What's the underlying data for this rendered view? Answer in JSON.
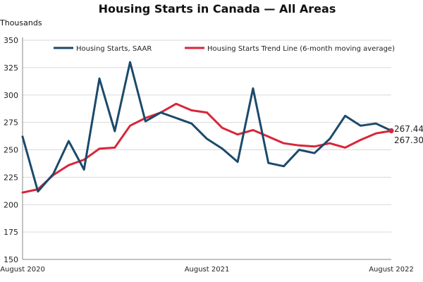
{
  "chart_data": {
    "type": "line",
    "title": "Housing Starts in Canada — All Areas",
    "ylabel": "Thousands",
    "xlabel": "",
    "ylim": [
      150,
      350
    ],
    "yticks": [
      150,
      175,
      200,
      225,
      250,
      275,
      300,
      325,
      350
    ],
    "x_tick_labels": [
      "August 2020",
      "August 2021",
      "August 2022"
    ],
    "x_tick_indices": [
      0,
      12,
      24
    ],
    "x": [
      "2020-08",
      "2020-09",
      "2020-10",
      "2020-11",
      "2020-12",
      "2021-01",
      "2021-02",
      "2021-03",
      "2021-04",
      "2021-05",
      "2021-06",
      "2021-07",
      "2021-08",
      "2021-09",
      "2021-10",
      "2021-11",
      "2021-12",
      "2022-01",
      "2022-02",
      "2022-03",
      "2022-04",
      "2022-05",
      "2022-06",
      "2022-07",
      "2022-08"
    ],
    "grid": true,
    "legend_position": "top",
    "series": [
      {
        "name": "Housing Starts, SAAR",
        "color": "#1b4a6b",
        "values": [
          262,
          212,
          228,
          258,
          232,
          315,
          267,
          330,
          276,
          284,
          279,
          274,
          260,
          251,
          239,
          306,
          238,
          235,
          250,
          247,
          260,
          281,
          272,
          274,
          267.44
        ]
      },
      {
        "name": "Housing Starts Trend Line (6-month moving average)",
        "color": "#d9263a",
        "values": [
          211,
          214,
          227,
          236,
          241,
          251,
          252,
          272,
          279,
          284,
          292,
          286,
          284,
          270,
          264,
          268,
          262,
          256,
          254,
          253,
          256,
          252,
          259,
          265,
          267.309
        ]
      }
    ],
    "annotations": [
      "267.44",
      "267.309"
    ]
  }
}
